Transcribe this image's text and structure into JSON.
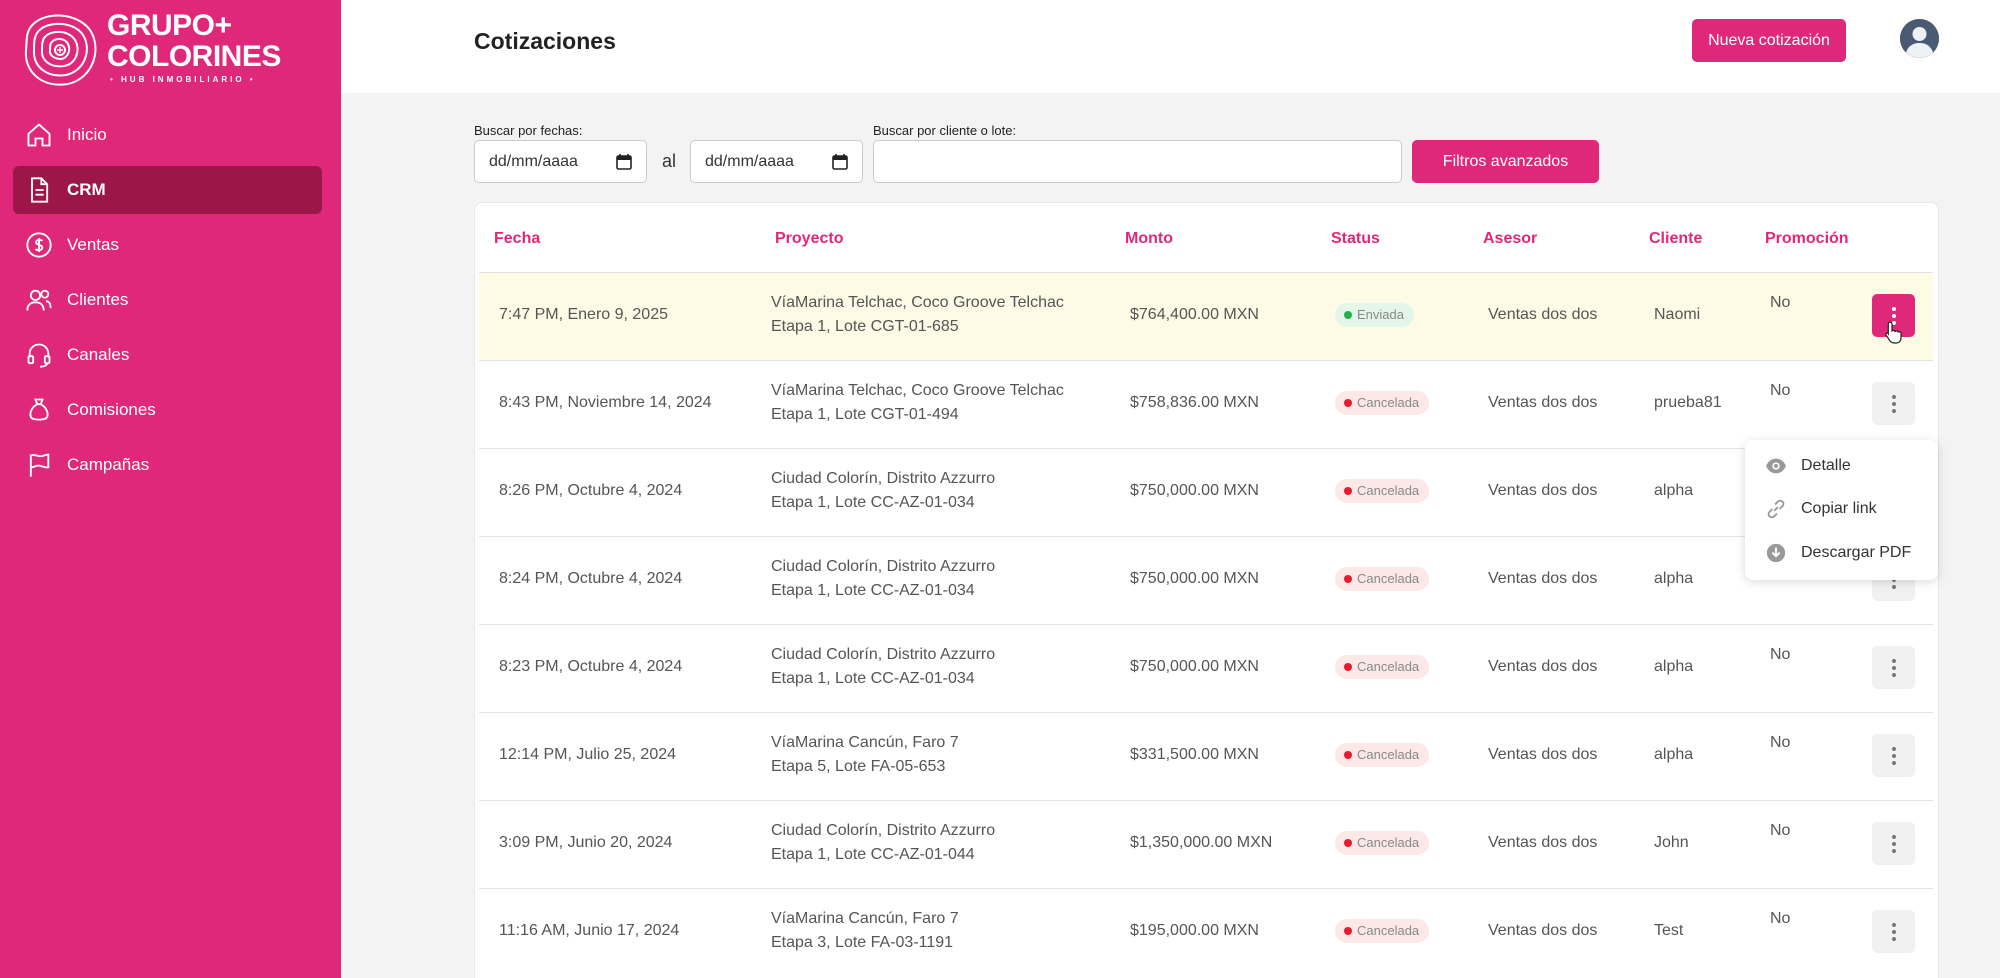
{
  "brand": {
    "line1": "GRUPO+",
    "line2": "COLORINES",
    "tagline": "• HUB INMOBILIARIO •"
  },
  "sidebar": {
    "items": [
      {
        "label": "Inicio",
        "icon": "home-icon"
      },
      {
        "label": "CRM",
        "icon": "document-icon",
        "active": true
      },
      {
        "label": "Ventas",
        "icon": "dollar-circle-icon"
      },
      {
        "label": "Clientes",
        "icon": "users-icon"
      },
      {
        "label": "Canales",
        "icon": "headset-icon"
      },
      {
        "label": "Comisiones",
        "icon": "money-bag-icon"
      },
      {
        "label": "Campañas",
        "icon": "flag-icon"
      }
    ]
  },
  "header": {
    "title": "Cotizaciones",
    "new_button": "Nueva cotización"
  },
  "filters": {
    "date_label": "Buscar por fechas:",
    "date_from": "dd/mm/aaaa",
    "separator": "al",
    "date_to": "dd/mm/aaaa",
    "search_label": "Buscar por cliente o lote:",
    "search_value": "",
    "advanced_button": "Filtros avanzados"
  },
  "table": {
    "columns": [
      "Fecha",
      "Proyecto",
      "Monto",
      "Status",
      "Asesor",
      "Cliente",
      "Promoción"
    ],
    "rows": [
      {
        "fecha": "7:47 PM, Enero 9, 2025",
        "proyecto1": "VíaMarina Telchac, Coco Groove Telchac",
        "proyecto2": "Etapa 1, Lote CGT-01-685",
        "monto": "$764,400.00 MXN",
        "status": "Enviada",
        "asesor": "Ventas dos dos",
        "cliente": "Naomi",
        "promocion": "No"
      },
      {
        "fecha": "8:43 PM, Noviembre 14, 2024",
        "proyecto1": "VíaMarina Telchac, Coco Groove Telchac",
        "proyecto2": "Etapa 1, Lote CGT-01-494",
        "monto": "$758,836.00 MXN",
        "status": "Cancelada",
        "asesor": "Ventas dos dos",
        "cliente": "prueba81",
        "promocion": "No"
      },
      {
        "fecha": "8:26 PM, Octubre 4, 2024",
        "proyecto1": "Ciudad Colorín, Distrito Azzurro",
        "proyecto2": "Etapa 1, Lote CC-AZ-01-034",
        "monto": "$750,000.00 MXN",
        "status": "Cancelada",
        "asesor": "Ventas dos dos",
        "cliente": "alpha",
        "promocion": ""
      },
      {
        "fecha": "8:24 PM, Octubre 4, 2024",
        "proyecto1": "Ciudad Colorín, Distrito Azzurro",
        "proyecto2": "Etapa 1, Lote CC-AZ-01-034",
        "monto": "$750,000.00 MXN",
        "status": "Cancelada",
        "asesor": "Ventas dos dos",
        "cliente": "alpha",
        "promocion": ""
      },
      {
        "fecha": "8:23 PM, Octubre 4, 2024",
        "proyecto1": "Ciudad Colorín, Distrito Azzurro",
        "proyecto2": "Etapa 1, Lote CC-AZ-01-034",
        "monto": "$750,000.00 MXN",
        "status": "Cancelada",
        "asesor": "Ventas dos dos",
        "cliente": "alpha",
        "promocion": "No"
      },
      {
        "fecha": "12:14 PM, Julio 25, 2024",
        "proyecto1": "VíaMarina Cancún, Faro 7",
        "proyecto2": "Etapa 5, Lote FA-05-653",
        "monto": "$331,500.00 MXN",
        "status": "Cancelada",
        "asesor": "Ventas dos dos",
        "cliente": "alpha",
        "promocion": "No"
      },
      {
        "fecha": "3:09 PM, Junio 20, 2024",
        "proyecto1": "Ciudad Colorín, Distrito Azzurro",
        "proyecto2": "Etapa 1, Lote CC-AZ-01-044",
        "monto": "$1,350,000.00 MXN",
        "status": "Cancelada",
        "asesor": "Ventas dos dos",
        "cliente": "John",
        "promocion": "No"
      },
      {
        "fecha": "11:16 AM, Junio 17, 2024",
        "proyecto1": "VíaMarina Cancún, Faro 7",
        "proyecto2": "Etapa 3, Lote FA-03-1191",
        "monto": "$195,000.00 MXN",
        "status": "Cancelada",
        "asesor": "Ventas dos dos",
        "cliente": "Test",
        "promocion": "No"
      }
    ]
  },
  "menu": {
    "items": [
      {
        "label": "Detalle",
        "icon": "eye-icon"
      },
      {
        "label": "Copiar link",
        "icon": "link-icon"
      },
      {
        "label": "Descargar PDF",
        "icon": "download-icon"
      }
    ]
  },
  "colors": {
    "accent": "#e0287a",
    "active_nav": "#9c1648",
    "highlight_row": "#fdfbe6"
  }
}
